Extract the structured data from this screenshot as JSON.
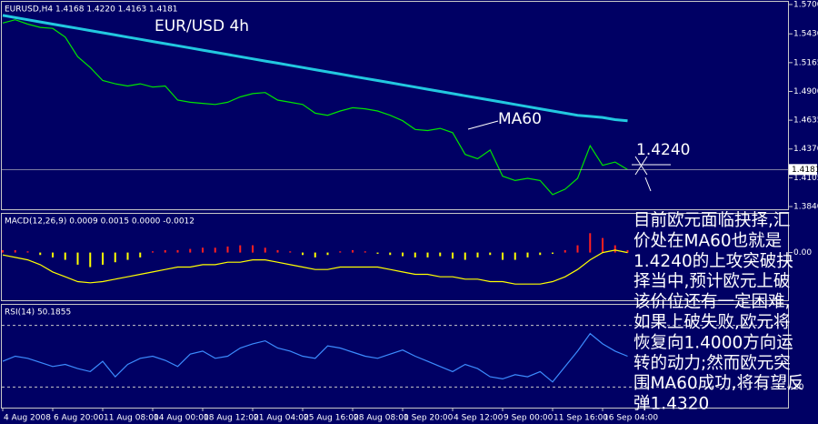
{
  "chart_data": [
    {
      "type": "line",
      "title": "EURUSD,H4 1.4168 1.4220 1.4163 1.4181",
      "ylim": [
        1.3815,
        1.5725
      ],
      "yticks": [
        {
          "value": 1.57,
          "label": "1.5700"
        },
        {
          "value": 1.543,
          "label": "1.5430"
        },
        {
          "value": 1.5165,
          "label": "1.5165"
        },
        {
          "value": 1.49,
          "label": "1.4900"
        },
        {
          "value": 1.4635,
          "label": "1.4635"
        },
        {
          "value": 1.437,
          "label": "1.4370"
        },
        {
          "value": 1.4105,
          "label": "1.4105"
        },
        {
          "value": 1.384,
          "label": "1.3840"
        }
      ],
      "last_price": {
        "value": 1.4181,
        "label": "1.4181"
      },
      "annotations": [
        "EUR/USD 4h",
        "MA60",
        "1.4240"
      ],
      "series": [
        {
          "color": "#00e600",
          "values": [
            1.553,
            1.556,
            1.552,
            1.549,
            1.548,
            1.54,
            1.522,
            1.512,
            1.5,
            1.497,
            1.495,
            1.497,
            1.494,
            1.495,
            1.482,
            1.48,
            1.479,
            1.478,
            1.48,
            1.485,
            1.488,
            1.489,
            1.482,
            1.48,
            1.478,
            1.47,
            1.468,
            1.472,
            1.475,
            1.474,
            1.472,
            1.468,
            1.463,
            1.455,
            1.454,
            1.456,
            1.452,
            1.432,
            1.428,
            1.436,
            1.412,
            1.408,
            1.41,
            1.408,
            1.395,
            1.4,
            1.41,
            1.44,
            1.422,
            1.425,
            1.418
          ]
        },
        {
          "color": "#22c8e0",
          "values": [
            1.56,
            1.558,
            1.556,
            1.554,
            1.552,
            1.55,
            1.548,
            1.546,
            1.544,
            1.542,
            1.54,
            1.538,
            1.536,
            1.534,
            1.532,
            1.53,
            1.528,
            1.526,
            1.524,
            1.522,
            1.52,
            1.518,
            1.516,
            1.514,
            1.512,
            1.51,
            1.508,
            1.506,
            1.504,
            1.502,
            1.5,
            1.498,
            1.496,
            1.494,
            1.492,
            1.49,
            1.488,
            1.486,
            1.484,
            1.482,
            1.48,
            1.478,
            1.476,
            1.474,
            1.472,
            1.47,
            1.468,
            1.467,
            1.466,
            1.464,
            1.463
          ]
        }
      ]
    },
    {
      "type": "bar",
      "title": "MACD(12,26,9) 0.0009 0.0015 0.0000 -0.0012",
      "ylim": [
        -0.0197,
        0.016
      ],
      "yticks": [
        {
          "value": 0,
          "label": "0.00"
        }
      ],
      "color": "#ff2020",
      "negative_color": "#ffff00",
      "values": [
        0.001,
        0.001,
        0.0005,
        -0.001,
        -0.002,
        -0.003,
        -0.005,
        -0.006,
        -0.005,
        -0.004,
        -0.003,
        -0.002,
        0.0005,
        0.001,
        0.001,
        0.0015,
        0.002,
        0.002,
        0.0025,
        0.003,
        0.003,
        0.002,
        0.001,
        0.0005,
        -0.001,
        -0.002,
        -0.001,
        0.0005,
        0.001,
        0.0005,
        -0.0005,
        -0.001,
        -0.0015,
        -0.002,
        -0.002,
        -0.0015,
        -0.0025,
        -0.003,
        -0.002,
        -0.001,
        -0.003,
        -0.003,
        -0.002,
        -0.001,
        -0.0005,
        0.001,
        0.003,
        0.008,
        0.006,
        0.003,
        0.001
      ],
      "series": [
        {
          "color": "#ffff00",
          "values": [
            -0.001,
            -0.002,
            -0.003,
            -0.005,
            -0.008,
            -0.01,
            -0.012,
            -0.0125,
            -0.012,
            -0.011,
            -0.01,
            -0.009,
            -0.008,
            -0.007,
            -0.006,
            -0.006,
            -0.005,
            -0.005,
            -0.004,
            -0.004,
            -0.003,
            -0.003,
            -0.004,
            -0.005,
            -0.006,
            -0.007,
            -0.007,
            -0.006,
            -0.006,
            -0.006,
            -0.006,
            -0.007,
            -0.008,
            -0.009,
            -0.009,
            -0.01,
            -0.01,
            -0.011,
            -0.011,
            -0.012,
            -0.012,
            -0.013,
            -0.013,
            -0.013,
            -0.012,
            -0.01,
            -0.007,
            -0.003,
            0.0,
            0.001,
            0.0
          ]
        }
      ]
    },
    {
      "type": "line",
      "title": "RSI(14) 50.1855",
      "ylim": [
        0,
        100
      ],
      "yticks": [
        20
      ],
      "levels": [
        80,
        20
      ],
      "categories": [
        "4 Aug 2008",
        null,
        null,
        null,
        "6 Aug 20:00",
        null,
        null,
        null,
        "11 Aug 08:00",
        null,
        null,
        null,
        "14 Aug 00:00",
        null,
        null,
        null,
        "18 Aug 12:00",
        null,
        null,
        null,
        "21 Aug 04:00",
        null,
        null,
        null,
        "25 Aug 16:00",
        null,
        null,
        null,
        "28 Aug 08:00",
        null,
        null,
        null,
        "1 Sep 20:00",
        null,
        null,
        null,
        "4 Sep 12:00",
        null,
        null,
        null,
        "9 Sep 00:00",
        null,
        null,
        null,
        "11 Sep 16:00",
        null,
        null,
        null,
        "16 Sep 04:00",
        null,
        null
      ],
      "series": [
        {
          "color": "#3c8cff",
          "values": [
            45,
            50,
            48,
            44,
            40,
            42,
            38,
            35,
            45,
            30,
            42,
            48,
            50,
            46,
            40,
            52,
            55,
            48,
            50,
            58,
            62,
            65,
            58,
            55,
            50,
            48,
            60,
            58,
            54,
            50,
            48,
            52,
            56,
            50,
            45,
            40,
            35,
            42,
            38,
            30,
            28,
            32,
            30,
            35,
            25,
            40,
            55,
            72,
            62,
            55,
            50
          ]
        }
      ]
    }
  ],
  "overlay_text": {
    "lines": [
      "目前欧元面临抉择,汇",
      "价处在MA60也就是",
      "1.4240的上攻突破抉",
      "择当中,预计欧元上破",
      "该价位还有一定困难,",
      "如果上破失败,欧元将",
      "恢复向1.4000方向运",
      "转的动力;然而欧元突",
      "围MA60成功,将有望反",
      "弹1.4320"
    ]
  }
}
